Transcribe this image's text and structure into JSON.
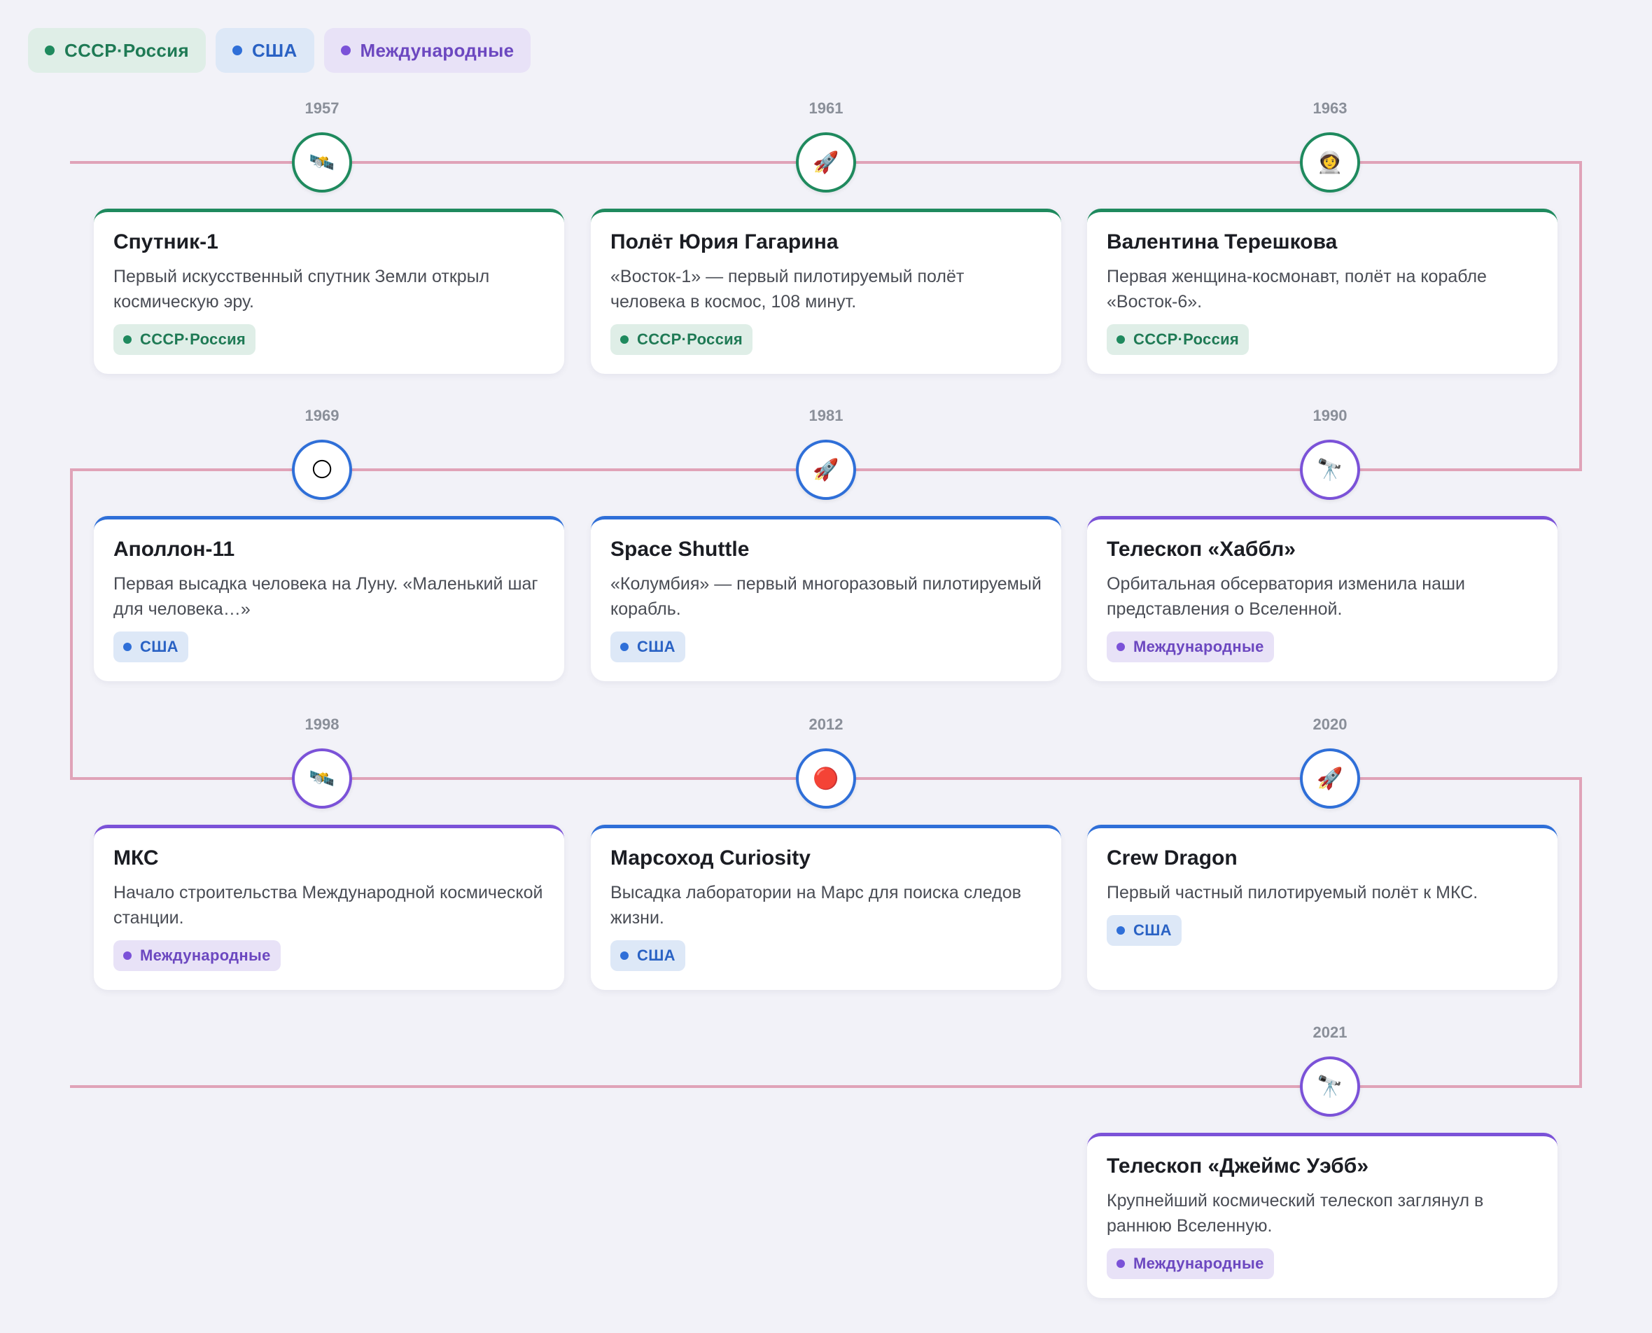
{
  "legend": [
    {
      "label": "СССР·Россия",
      "color": "green"
    },
    {
      "label": "США",
      "color": "blue"
    },
    {
      "label": "Международные",
      "color": "purple"
    }
  ],
  "colors": {
    "green": "#1f8a5e",
    "blue": "#2f6fd8",
    "purple": "#7b52d8",
    "path": "#e0a3b8"
  },
  "events": [
    {
      "year": "1957",
      "icon": "satellite-icon",
      "glyph": "🛰️",
      "title": "Спутник-1",
      "text": "Первый искусственный спутник Земли открыл космическую эру.",
      "tag": "СССР·Россия",
      "color": "green"
    },
    {
      "year": "1961",
      "icon": "rocket-icon",
      "glyph": "🚀",
      "title": "Полёт Юрия Гагарина",
      "text": "«Восток-1» — первый пилотируемый полёт человека в космос, 108 минут.",
      "tag": "СССР·Россия",
      "color": "green"
    },
    {
      "year": "1963",
      "icon": "astronaut-icon",
      "glyph": "👩‍🚀",
      "title": "Валентина Терешкова",
      "text": "Первая женщина-космонавт, полёт на корабле «Восток-6».",
      "tag": "СССР·Россия",
      "color": "green"
    },
    {
      "year": "1990",
      "icon": "telescope-icon",
      "glyph": "🔭",
      "title": "Телескоп «Хаббл»",
      "text": "Орбитальная обсерватория изменила наши представления о Вселенной.",
      "tag": "Международные",
      "color": "purple"
    },
    {
      "year": "1981",
      "icon": "rocket-icon",
      "glyph": "🚀",
      "title": "Space Shuttle",
      "text": "«Колумбия» — первый многоразовый пилотируемый корабль.",
      "tag": "США",
      "color": "blue"
    },
    {
      "year": "1969",
      "icon": "moon-icon",
      "glyph": "🌕",
      "title": "Аполлон-11",
      "text": "Первая высадка человека на Луну. «Маленький шаг для человека…»",
      "tag": "США",
      "color": "blue"
    },
    {
      "year": "1998",
      "icon": "satellite-icon",
      "glyph": "🛰️",
      "title": "МКС",
      "text": "Начало строительства Международной космической станции.",
      "tag": "Международные",
      "color": "purple"
    },
    {
      "year": "2012",
      "icon": "red-planet-icon",
      "glyph": "🔴",
      "title": "Марсоход Curiosity",
      "text": "Высадка лаборатории на Марс для поиска следов жизни.",
      "tag": "США",
      "color": "blue"
    },
    {
      "year": "2020",
      "icon": "rocket-icon",
      "glyph": "🚀",
      "title": "Crew Dragon",
      "text": "Первый частный пилотируемый полёт к МКС.",
      "tag": "США",
      "color": "blue"
    },
    {
      "year": "2021",
      "icon": "telescope-icon",
      "glyph": "🔭",
      "title": "Телескоп «Джеймс Уэбб»",
      "text": "Крупнейший космический телескоп заглянул в раннюю Вселенную.",
      "tag": "Международные",
      "color": "purple"
    }
  ]
}
